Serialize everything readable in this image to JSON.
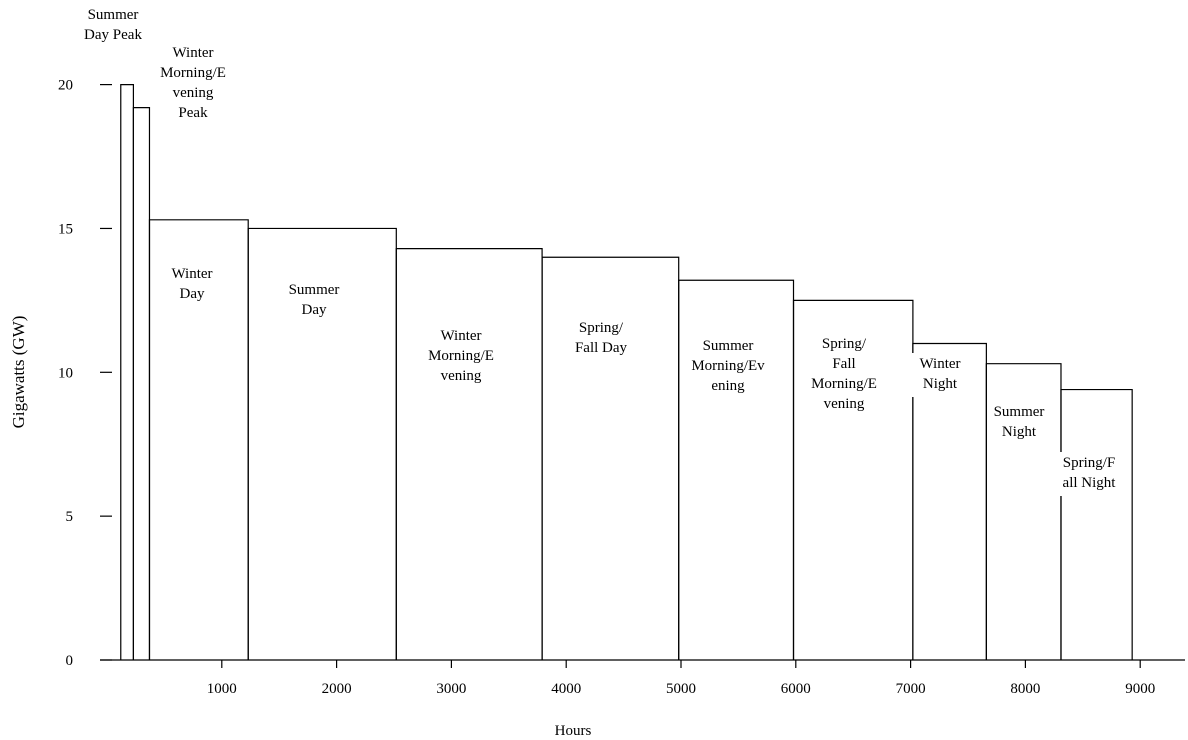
{
  "chart_data": {
    "type": "bar",
    "title": "",
    "xlabel": "Hours",
    "ylabel": "Gigawatts (GW)",
    "xlim": [
      0,
      9300
    ],
    "ylim": [
      0,
      21
    ],
    "x_ticks": [
      1000,
      2000,
      3000,
      4000,
      5000,
      6000,
      7000,
      8000,
      9000
    ],
    "x_tick_labels": [
      "1000",
      "2000",
      "3000",
      "4000",
      "5000",
      "6000",
      "7000",
      "8000",
      "9000"
    ],
    "y_ticks": [
      0,
      5,
      10,
      15,
      20
    ],
    "y_tick_labels": [
      "0",
      "5",
      "10",
      "15",
      "20"
    ],
    "grid": false,
    "legend": "none",
    "bars": [
      {
        "label": [
          "Summer",
          "Day Peak"
        ],
        "start": 120,
        "end": 230,
        "value": 20.0
      },
      {
        "label": [
          "Winter",
          "Morning/E",
          "vening",
          "Peak"
        ],
        "start": 230,
        "end": 370,
        "value": 19.2
      },
      {
        "label": [
          "Winter",
          "Day"
        ],
        "start": 370,
        "end": 1230,
        "value": 15.3
      },
      {
        "label": [
          "Summer",
          "Day"
        ],
        "start": 1230,
        "end": 2520,
        "value": 15.0
      },
      {
        "label": [
          "Winter",
          "Morning/E",
          "vening"
        ],
        "start": 2520,
        "end": 3790,
        "value": 14.3
      },
      {
        "label": [
          "Spring/",
          "Fall Day"
        ],
        "start": 3790,
        "end": 4980,
        "value": 14.0
      },
      {
        "label": [
          "Summer",
          "Morning/Ev",
          "ening"
        ],
        "start": 4980,
        "end": 5980,
        "value": 13.2
      },
      {
        "label": [
          "Spring/",
          "Fall",
          "Morning/E",
          "vening"
        ],
        "start": 5980,
        "end": 7020,
        "value": 12.5
      },
      {
        "label": [
          "Winter",
          "Night"
        ],
        "start": 7020,
        "end": 7660,
        "value": 11.0
      },
      {
        "label": [
          "Summer",
          "Night"
        ],
        "start": 7660,
        "end": 8310,
        "value": 10.3
      },
      {
        "label": [
          "Spring/F",
          "all Night"
        ],
        "start": 8310,
        "end": 8930,
        "value": 9.4
      }
    ]
  }
}
